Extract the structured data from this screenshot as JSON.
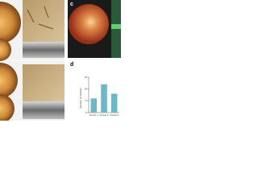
{
  "panels": [
    {
      "label": "c"
    },
    {
      "label": "d"
    }
  ],
  "chart_data": {
    "type": "bar",
    "y_label": "Number of patients",
    "categories": [
      "Group 1",
      "Group 2",
      "Group 3"
    ],
    "values": [
      6,
      12,
      8
    ],
    "color": "#6cb8c9",
    "ylim": [
      0,
      15
    ],
    "yticks": [
      0,
      5,
      10,
      15
    ]
  }
}
